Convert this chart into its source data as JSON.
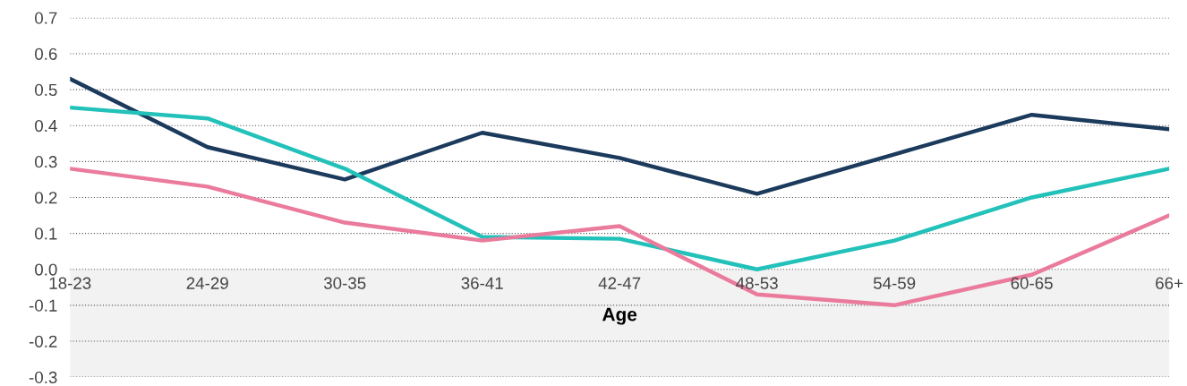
{
  "chart_data": {
    "type": "line",
    "xlabel": "Age",
    "categories": [
      "18-23",
      "24-29",
      "30-35",
      "36-41",
      "42-47",
      "48-53",
      "54-59",
      "60-65",
      "66+"
    ],
    "series": [
      {
        "color": "#1b3a5c",
        "values": [
          0.53,
          0.34,
          0.25,
          0.38,
          0.31,
          0.21,
          0.32,
          0.43,
          0.39
        ]
      },
      {
        "color": "#22c1b9",
        "values": [
          0.45,
          0.42,
          0.28,
          0.09,
          0.085,
          0.0,
          0.08,
          0.2,
          0.28
        ]
      },
      {
        "color": "#ea7b9c",
        "values": [
          0.28,
          0.23,
          0.13,
          0.08,
          0.12,
          -0.07,
          -0.1,
          -0.015,
          0.15
        ]
      }
    ],
    "ylim": [
      -0.3,
      0.7
    ],
    "yticks": [
      -0.3,
      -0.2,
      -0.1,
      {
        "value": 0,
        "label": "0.0"
      },
      0.1,
      0.2,
      0.3,
      0.4,
      0.5,
      0.6,
      0.7
    ],
    "bands": [
      {
        "axis": "y",
        "from": -0.3,
        "to": 0.0,
        "color": "#f2f2f2"
      }
    ],
    "grid": "y",
    "legend": false,
    "line_style": "solid",
    "marker": "none"
  }
}
